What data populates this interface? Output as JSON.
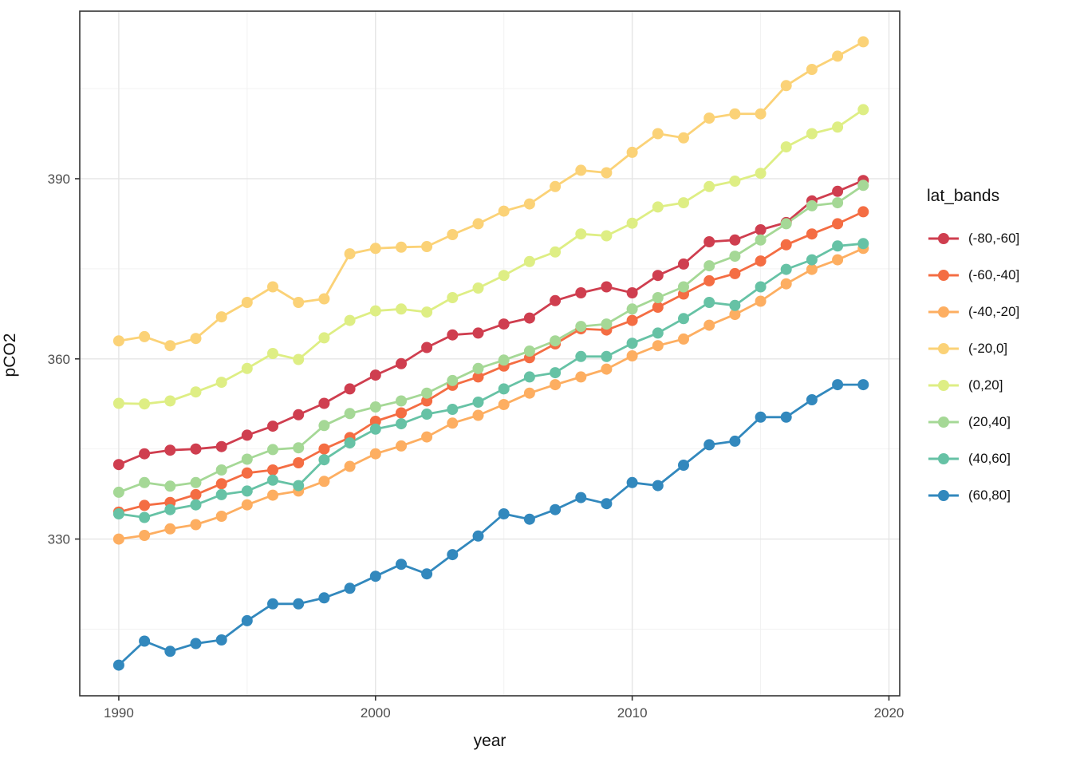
{
  "axis": {
    "x_title": "year",
    "y_title": "pCO2"
  },
  "chart_data": {
    "type": "line",
    "title": "",
    "xlabel": "year",
    "ylabel": "pCO2",
    "legend_title": "lat_bands",
    "legend_position": "right",
    "grid": "on",
    "background": "#ffffff",
    "panel_border_color": "#333333",
    "grid_major_color": "#e5e5e5",
    "grid_minor_color": "#f2f2f2",
    "tick_label_color": "#4d4d4d",
    "xlim": [
      1988.48,
      2020.42
    ],
    "ylim": [
      303.9,
      417.9
    ],
    "x_ticks": [
      1990,
      2000,
      2010,
      2020
    ],
    "x_minor_ticks": [
      1995,
      2005,
      2015
    ],
    "y_ticks": [
      330,
      360,
      390
    ],
    "y_minor_ticks": [
      315,
      345,
      375,
      405
    ],
    "x": [
      1990,
      1991,
      1992,
      1993,
      1994,
      1995,
      1996,
      1997,
      1998,
      1999,
      2000,
      2001,
      2002,
      2003,
      2004,
      2005,
      2006,
      2007,
      2008,
      2009,
      2010,
      2011,
      2012,
      2013,
      2014,
      2015,
      2016,
      2017,
      2018,
      2019
    ],
    "series": [
      {
        "name": "(-80,-60]",
        "color": "#cf3e4f",
        "values": [
          342.4,
          344.2,
          344.8,
          345.0,
          345.4,
          347.3,
          348.8,
          350.7,
          352.6,
          355.0,
          357.3,
          359.2,
          361.9,
          364.0,
          364.3,
          365.8,
          366.8,
          369.7,
          371.0,
          372.0,
          371.0,
          373.9,
          375.8,
          379.5,
          379.8,
          381.5,
          382.7,
          386.3,
          387.9,
          389.7
        ]
      },
      {
        "name": "(-60,-40]",
        "color": "#f46d43",
        "values": [
          334.5,
          335.6,
          336.1,
          337.4,
          339.2,
          341.0,
          341.5,
          342.7,
          345.0,
          346.9,
          349.6,
          351.0,
          353.0,
          355.6,
          357.0,
          358.8,
          360.2,
          362.5,
          365.0,
          364.8,
          366.4,
          368.6,
          370.8,
          373.0,
          374.2,
          376.3,
          379.0,
          380.8,
          382.5,
          384.5
        ]
      },
      {
        "name": "(-40,-20]",
        "color": "#fdae61",
        "values": [
          330.0,
          330.6,
          331.7,
          332.4,
          333.8,
          335.7,
          337.3,
          338.0,
          339.6,
          342.1,
          344.2,
          345.5,
          347.0,
          349.3,
          350.6,
          352.4,
          354.3,
          355.7,
          357.0,
          358.3,
          360.5,
          362.2,
          363.3,
          365.6,
          367.4,
          369.6,
          372.5,
          374.9,
          376.5,
          378.4
        ]
      },
      {
        "name": "(-20,0]",
        "color": "#fbd277",
        "values": [
          363.0,
          363.7,
          362.2,
          363.4,
          367.0,
          369.4,
          372.0,
          369.4,
          370.0,
          377.5,
          378.4,
          378.6,
          378.7,
          380.7,
          382.5,
          384.6,
          385.8,
          388.7,
          391.4,
          391.0,
          394.4,
          397.5,
          396.8,
          400.1,
          400.8,
          400.8,
          405.5,
          408.2,
          410.4,
          412.8
        ]
      },
      {
        "name": "(0,20]",
        "color": "#deee84",
        "values": [
          352.6,
          352.5,
          353.0,
          354.5,
          356.1,
          358.4,
          360.9,
          359.9,
          363.5,
          366.4,
          368.0,
          368.3,
          367.8,
          370.2,
          371.8,
          373.9,
          376.2,
          377.8,
          380.8,
          380.5,
          382.6,
          385.3,
          386.0,
          388.7,
          389.6,
          390.9,
          395.3,
          397.5,
          398.6,
          401.5
        ]
      },
      {
        "name": "(20,40]",
        "color": "#a5d896",
        "values": [
          337.8,
          339.4,
          338.8,
          339.4,
          341.5,
          343.3,
          344.9,
          345.2,
          348.9,
          350.9,
          352.0,
          353.0,
          354.3,
          356.4,
          358.4,
          359.8,
          361.3,
          363.0,
          365.4,
          365.8,
          368.3,
          370.2,
          372.0,
          375.5,
          377.1,
          379.8,
          382.5,
          385.5,
          386.0,
          388.9
        ]
      },
      {
        "name": "(40,60]",
        "color": "#66c2a5",
        "values": [
          334.2,
          333.6,
          334.9,
          335.7,
          337.4,
          338.0,
          339.8,
          338.9,
          343.2,
          346.0,
          348.3,
          349.2,
          350.8,
          351.6,
          352.8,
          355.0,
          357.0,
          357.7,
          360.4,
          360.4,
          362.6,
          364.3,
          366.7,
          369.4,
          368.9,
          372.0,
          374.9,
          376.5,
          378.8,
          379.2
        ]
      },
      {
        "name": "(60,80]",
        "color": "#3288bd",
        "values": [
          309.0,
          313.0,
          311.3,
          312.6,
          313.2,
          316.4,
          319.2,
          319.2,
          320.2,
          321.8,
          323.8,
          325.8,
          324.2,
          327.4,
          330.5,
          334.2,
          333.3,
          334.9,
          336.9,
          335.9,
          339.4,
          338.9,
          342.3,
          345.7,
          346.3,
          350.3,
          350.3,
          353.2,
          355.7,
          355.7
        ]
      }
    ]
  }
}
